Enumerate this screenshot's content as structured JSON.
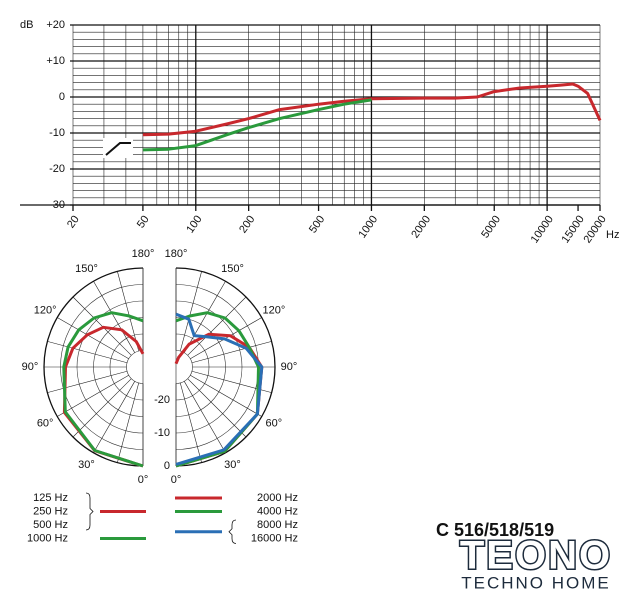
{
  "chart_data": [
    {
      "type": "line",
      "log_x": true,
      "ylabel": "dB",
      "xlabel": "Hz",
      "xlim": [
        20,
        20000
      ],
      "xticks": [
        20,
        50,
        100,
        200,
        500,
        1000,
        2000,
        5000,
        10000,
        15000,
        20000
      ],
      "ylim": [
        -30,
        20
      ],
      "yticks": [
        {
          "value": -30,
          "label": "-30"
        },
        {
          "value": -20,
          "label": "-20"
        },
        {
          "value": -10,
          "label": "-10"
        },
        {
          "value": 0,
          "label": "0"
        },
        {
          "value": 10,
          "label": "+10"
        },
        {
          "value": 20,
          "label": "+20"
        }
      ],
      "grid": true,
      "series": [
        {
          "color": "#c8282d",
          "x": [
            50,
            70,
            100,
            150,
            200,
            300,
            500,
            700,
            1000,
            2000,
            3000,
            4000,
            5000,
            7000,
            10000,
            12000,
            14000,
            15000,
            17000,
            20000
          ],
          "values": [
            -10.5,
            -10.3,
            -9.5,
            -7.5,
            -6,
            -3.5,
            -2,
            -1.2,
            -0.5,
            -0.3,
            -0.3,
            0,
            1.5,
            2.5,
            3,
            3.3,
            3.6,
            3,
            1,
            -6.5
          ]
        },
        {
          "color": "#2a9a3c",
          "x": [
            50,
            70,
            100,
            150,
            200,
            300,
            500,
            700,
            1000
          ],
          "values": [
            -14.7,
            -14.5,
            -13.5,
            -10.5,
            -8.5,
            -6,
            -3.5,
            -2,
            -0.8
          ]
        }
      ]
    },
    {
      "type": "polar",
      "rlim": [
        -30,
        0
      ],
      "rticks": [
        0,
        -10,
        -20
      ],
      "angle_ticks": [
        {
          "value": 0,
          "label": "0°"
        },
        {
          "value": 30,
          "label": "30°"
        },
        {
          "value": 60,
          "label": "60°"
        },
        {
          "value": 90,
          "label": "90°"
        },
        {
          "value": 120,
          "label": "120°"
        },
        {
          "value": 150,
          "label": "150°"
        },
        {
          "value": 180,
          "label": "180°"
        }
      ],
      "series": [
        {
          "names": [
            "125 Hz",
            "250 Hz",
            "500 Hz"
          ],
          "side": "left",
          "color": "#c8282d",
          "angles": [
            0,
            30,
            60,
            90,
            105,
            120,
            135,
            150,
            165,
            180
          ],
          "values": [
            0,
            -0.7,
            -2.5,
            -6.5,
            -8,
            -10.5,
            -13,
            -17,
            -22,
            -26
          ]
        },
        {
          "names": [
            "1000 Hz"
          ],
          "side": "left",
          "color": "#2a9a3c",
          "angles": [
            0,
            30,
            60,
            90,
            105,
            120,
            135,
            150,
            165,
            180
          ],
          "values": [
            0,
            -0.8,
            -2.8,
            -6,
            -6.5,
            -7.5,
            -9,
            -11,
            -14,
            -16
          ]
        },
        {
          "names": [
            "2000 Hz"
          ],
          "side": "right",
          "color": "#c8282d",
          "angles": [
            0,
            30,
            60,
            90,
            105,
            120,
            135,
            150,
            165,
            180
          ],
          "values": [
            0,
            -0.5,
            -1.5,
            -4,
            -7,
            -11,
            -16,
            -22,
            -27,
            -29
          ]
        },
        {
          "names": [
            "4000 Hz"
          ],
          "side": "right",
          "color": "#2a9a3c",
          "angles": [
            0,
            30,
            60,
            90,
            105,
            120,
            135,
            150,
            165,
            180
          ],
          "values": [
            0,
            -0.5,
            -1.5,
            -5,
            -7,
            -8,
            -9,
            -11,
            -14,
            -16
          ]
        },
        {
          "names": [
            "8000 Hz",
            "16000 Hz"
          ],
          "side": "right",
          "color": "#2a6fb5",
          "angles": [
            0,
            30,
            60,
            90,
            105,
            120,
            135,
            150,
            165,
            180
          ],
          "values": [
            -0.5,
            -1,
            -1.5,
            -4,
            -8,
            -13,
            -17,
            -19,
            -15,
            -14
          ]
        }
      ]
    }
  ],
  "branding": {
    "model": "C 516/518/519",
    "logo": "TEONO",
    "tagline": "TECHNO HOME"
  }
}
